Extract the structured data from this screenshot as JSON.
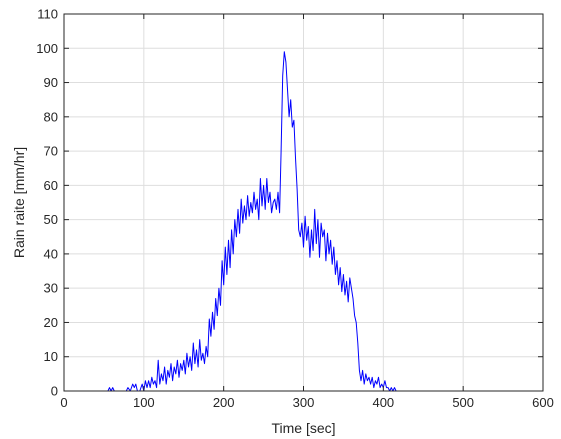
{
  "chart_data": {
    "type": "line",
    "title": "",
    "xlabel": "Time [sec]",
    "ylabel": "Rain raite [mm/hr]",
    "xlim": [
      0,
      600
    ],
    "ylim": [
      0,
      110
    ],
    "xticks": [
      0,
      100,
      200,
      300,
      400,
      500,
      600
    ],
    "yticks": [
      0,
      10,
      20,
      30,
      40,
      50,
      60,
      70,
      80,
      90,
      100,
      110
    ],
    "grid": true,
    "series": [
      {
        "color": "#0000ff",
        "x": [
          0,
          55,
          57,
          59,
          61,
          63,
          70,
          78,
          80,
          83,
          86,
          88,
          90,
          92,
          95,
          98,
          100,
          102,
          104,
          106,
          108,
          110,
          112,
          114,
          116,
          118,
          120,
          122,
          124,
          126,
          128,
          130,
          132,
          134,
          136,
          138,
          140,
          142,
          144,
          146,
          148,
          150,
          152,
          154,
          156,
          158,
          160,
          162,
          164,
          166,
          168,
          170,
          172,
          174,
          176,
          178,
          180,
          182,
          184,
          186,
          188,
          190,
          192,
          194,
          196,
          198,
          200,
          202,
          204,
          206,
          208,
          210,
          212,
          214,
          216,
          218,
          220,
          222,
          224,
          226,
          228,
          230,
          232,
          234,
          236,
          238,
          240,
          242,
          244,
          246,
          248,
          250,
          252,
          254,
          256,
          258,
          260,
          262,
          264,
          266,
          268,
          270,
          272,
          274,
          276,
          278,
          280,
          282,
          284,
          286,
          288,
          290,
          292,
          294,
          296,
          298,
          300,
          302,
          304,
          306,
          308,
          310,
          312,
          314,
          316,
          318,
          320,
          322,
          324,
          326,
          328,
          330,
          332,
          334,
          336,
          338,
          340,
          342,
          344,
          346,
          348,
          350,
          352,
          354,
          356,
          358,
          360,
          362,
          364,
          366,
          368,
          370,
          372,
          374,
          376,
          378,
          380,
          382,
          384,
          386,
          388,
          390,
          392,
          394,
          396,
          398,
          400,
          402,
          404,
          406,
          408,
          410,
          412,
          414,
          416,
          418,
          420,
          600
        ],
        "y": [
          0,
          0,
          1,
          0,
          1,
          0,
          0,
          0,
          1,
          0,
          2,
          1,
          2,
          0,
          0,
          2,
          0,
          3,
          1,
          3,
          1,
          4,
          2,
          3,
          1,
          9,
          2,
          5,
          3,
          7,
          2,
          6,
          4,
          8,
          3,
          7,
          5,
          9,
          4,
          8,
          6,
          9,
          5,
          11,
          7,
          10,
          6,
          14,
          8,
          12,
          7,
          15,
          9,
          11,
          8,
          13,
          10,
          21,
          16,
          23,
          18,
          27,
          22,
          30,
          25,
          38,
          31,
          42,
          34,
          44,
          36,
          47,
          40,
          50,
          45,
          53,
          46,
          56,
          49,
          54,
          50,
          57,
          51,
          55,
          52,
          58,
          53,
          56,
          50,
          62,
          54,
          60,
          53,
          62,
          55,
          58,
          52,
          55,
          56,
          53,
          58,
          52,
          70,
          92,
          99,
          96,
          88,
          80,
          85,
          77,
          79,
          68,
          59,
          47,
          45,
          49,
          42,
          51,
          44,
          48,
          39,
          47,
          41,
          53,
          43,
          50,
          39,
          49,
          45,
          47,
          38,
          46,
          40,
          44,
          37,
          42,
          34,
          38,
          31,
          36,
          29,
          34,
          28,
          32,
          26,
          33,
          30,
          27,
          22,
          20,
          14,
          6,
          3,
          6,
          2,
          5,
          3,
          4,
          2,
          4,
          1,
          3,
          2,
          4,
          1,
          2,
          1,
          3,
          1,
          1,
          0,
          1,
          0,
          1,
          0,
          0,
          0,
          0
        ]
      }
    ]
  }
}
